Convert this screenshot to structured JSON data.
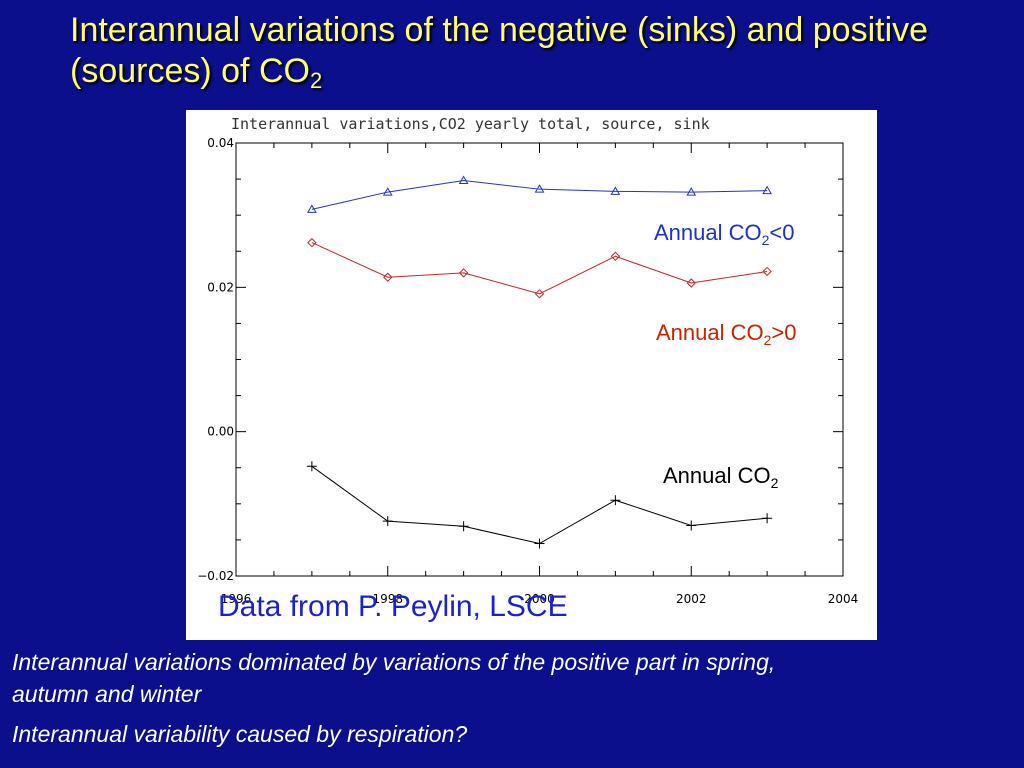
{
  "slide": {
    "title_main": "Interannual variations of the negative (sinks) and positive (sources) of CO",
    "title_sub": "2",
    "credit": "Data from P. Peylin, LSCE",
    "notes": [
      "Interannual variations dominated by variations of the positive part in spring, autumn and winter",
      "Interannual variability caused by respiration?"
    ],
    "annotations": {
      "sink": {
        "pre": "Annual CO",
        "sub": "2",
        "post": "<0",
        "color": "#1a33cc"
      },
      "source": {
        "pre": "Annual CO",
        "sub": "2",
        "post": ">0",
        "color": "#cc2200"
      },
      "total": {
        "pre": "Annual CO",
        "sub": "2",
        "post": "",
        "color": "#000000"
      }
    },
    "colors": {
      "background": "#0c0f8c",
      "title": "#ffff66",
      "credit": "#1a22cc"
    }
  },
  "chart_data": {
    "type": "line",
    "title": "Interannual variations,CO2 yearly total, source, sink",
    "xlabel": "",
    "ylabel": "",
    "xlim": [
      1996,
      2004
    ],
    "ylim": [
      -0.02,
      0.04
    ],
    "x_ticks": [
      1996,
      1998,
      2000,
      2002,
      2004
    ],
    "x_tick_labels": [
      "1996",
      "1998",
      "2000",
      "2002",
      "2004"
    ],
    "y_ticks": [
      -0.02,
      0.0,
      0.02,
      0.04
    ],
    "y_tick_labels": [
      "−0.02",
      "0.00",
      "0.02",
      "0.04"
    ],
    "grid": false,
    "series": [
      {
        "color": "#2233cc",
        "marker": "triangle",
        "x": [
          1997,
          1998,
          1999,
          2000,
          2001,
          2002,
          2003
        ],
        "values": [
          0.0308,
          0.0332,
          0.0348,
          0.0336,
          0.0333,
          0.0332,
          0.0334
        ]
      },
      {
        "color": "#cc2222",
        "marker": "diamond",
        "x": [
          1997,
          1998,
          1999,
          2000,
          2001,
          2002,
          2003
        ],
        "values": [
          0.0262,
          0.0214,
          0.022,
          0.0191,
          0.0243,
          0.0206,
          0.0222
        ]
      },
      {
        "color": "#000000",
        "marker": "plus",
        "x": [
          1997,
          1998,
          1999,
          2000,
          2001,
          2002,
          2003
        ],
        "values": [
          -0.0048,
          -0.0124,
          -0.0131,
          -0.0155,
          -0.0095,
          -0.013,
          -0.012
        ]
      }
    ]
  }
}
